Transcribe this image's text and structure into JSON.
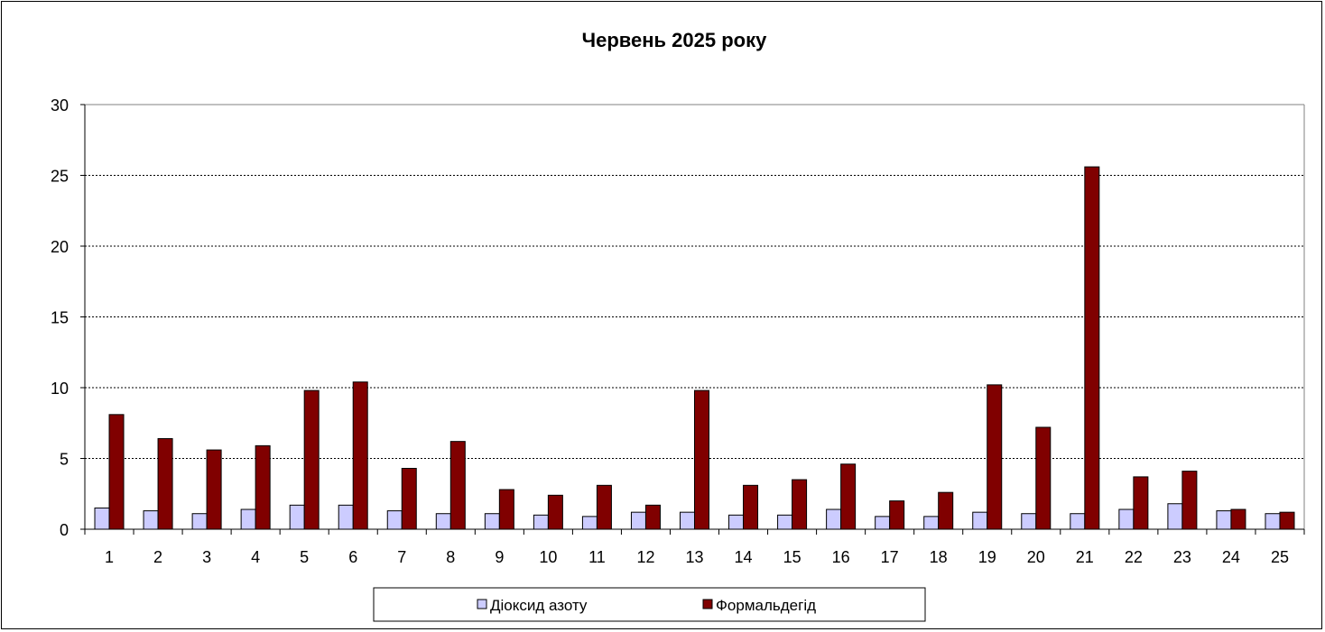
{
  "chart_data": {
    "type": "bar",
    "title": "Червень 2025 року",
    "xlabel": "",
    "ylabel": "",
    "ylim": [
      0,
      30
    ],
    "yticks": [
      0,
      5,
      10,
      15,
      20,
      25,
      30
    ],
    "grid": "horizontal dashed",
    "legend_position": "bottom",
    "categories": [
      "1",
      "2",
      "3",
      "4",
      "5",
      "6",
      "7",
      "8",
      "9",
      "10",
      "11",
      "12",
      "13",
      "14",
      "15",
      "16",
      "17",
      "18",
      "19",
      "20",
      "21",
      "22",
      "23",
      "24",
      "25"
    ],
    "series": [
      {
        "name": "Діоксид азоту",
        "color": "#CCCCFF",
        "values": [
          1.5,
          1.3,
          1.1,
          1.4,
          1.7,
          1.7,
          1.3,
          1.1,
          1.1,
          1.0,
          0.9,
          1.2,
          1.2,
          1.0,
          1.0,
          1.4,
          0.9,
          0.9,
          1.2,
          1.1,
          1.1,
          1.4,
          1.8,
          1.3,
          1.1
        ]
      },
      {
        "name": "Формальдегід",
        "color": "#800000",
        "values": [
          8.1,
          6.4,
          5.6,
          5.9,
          9.8,
          10.4,
          4.3,
          6.2,
          2.8,
          2.4,
          3.1,
          1.7,
          9.8,
          3.1,
          3.5,
          4.6,
          2.0,
          2.6,
          10.2,
          7.2,
          25.6,
          3.7,
          4.1,
          1.4,
          1.2
        ]
      }
    ]
  }
}
